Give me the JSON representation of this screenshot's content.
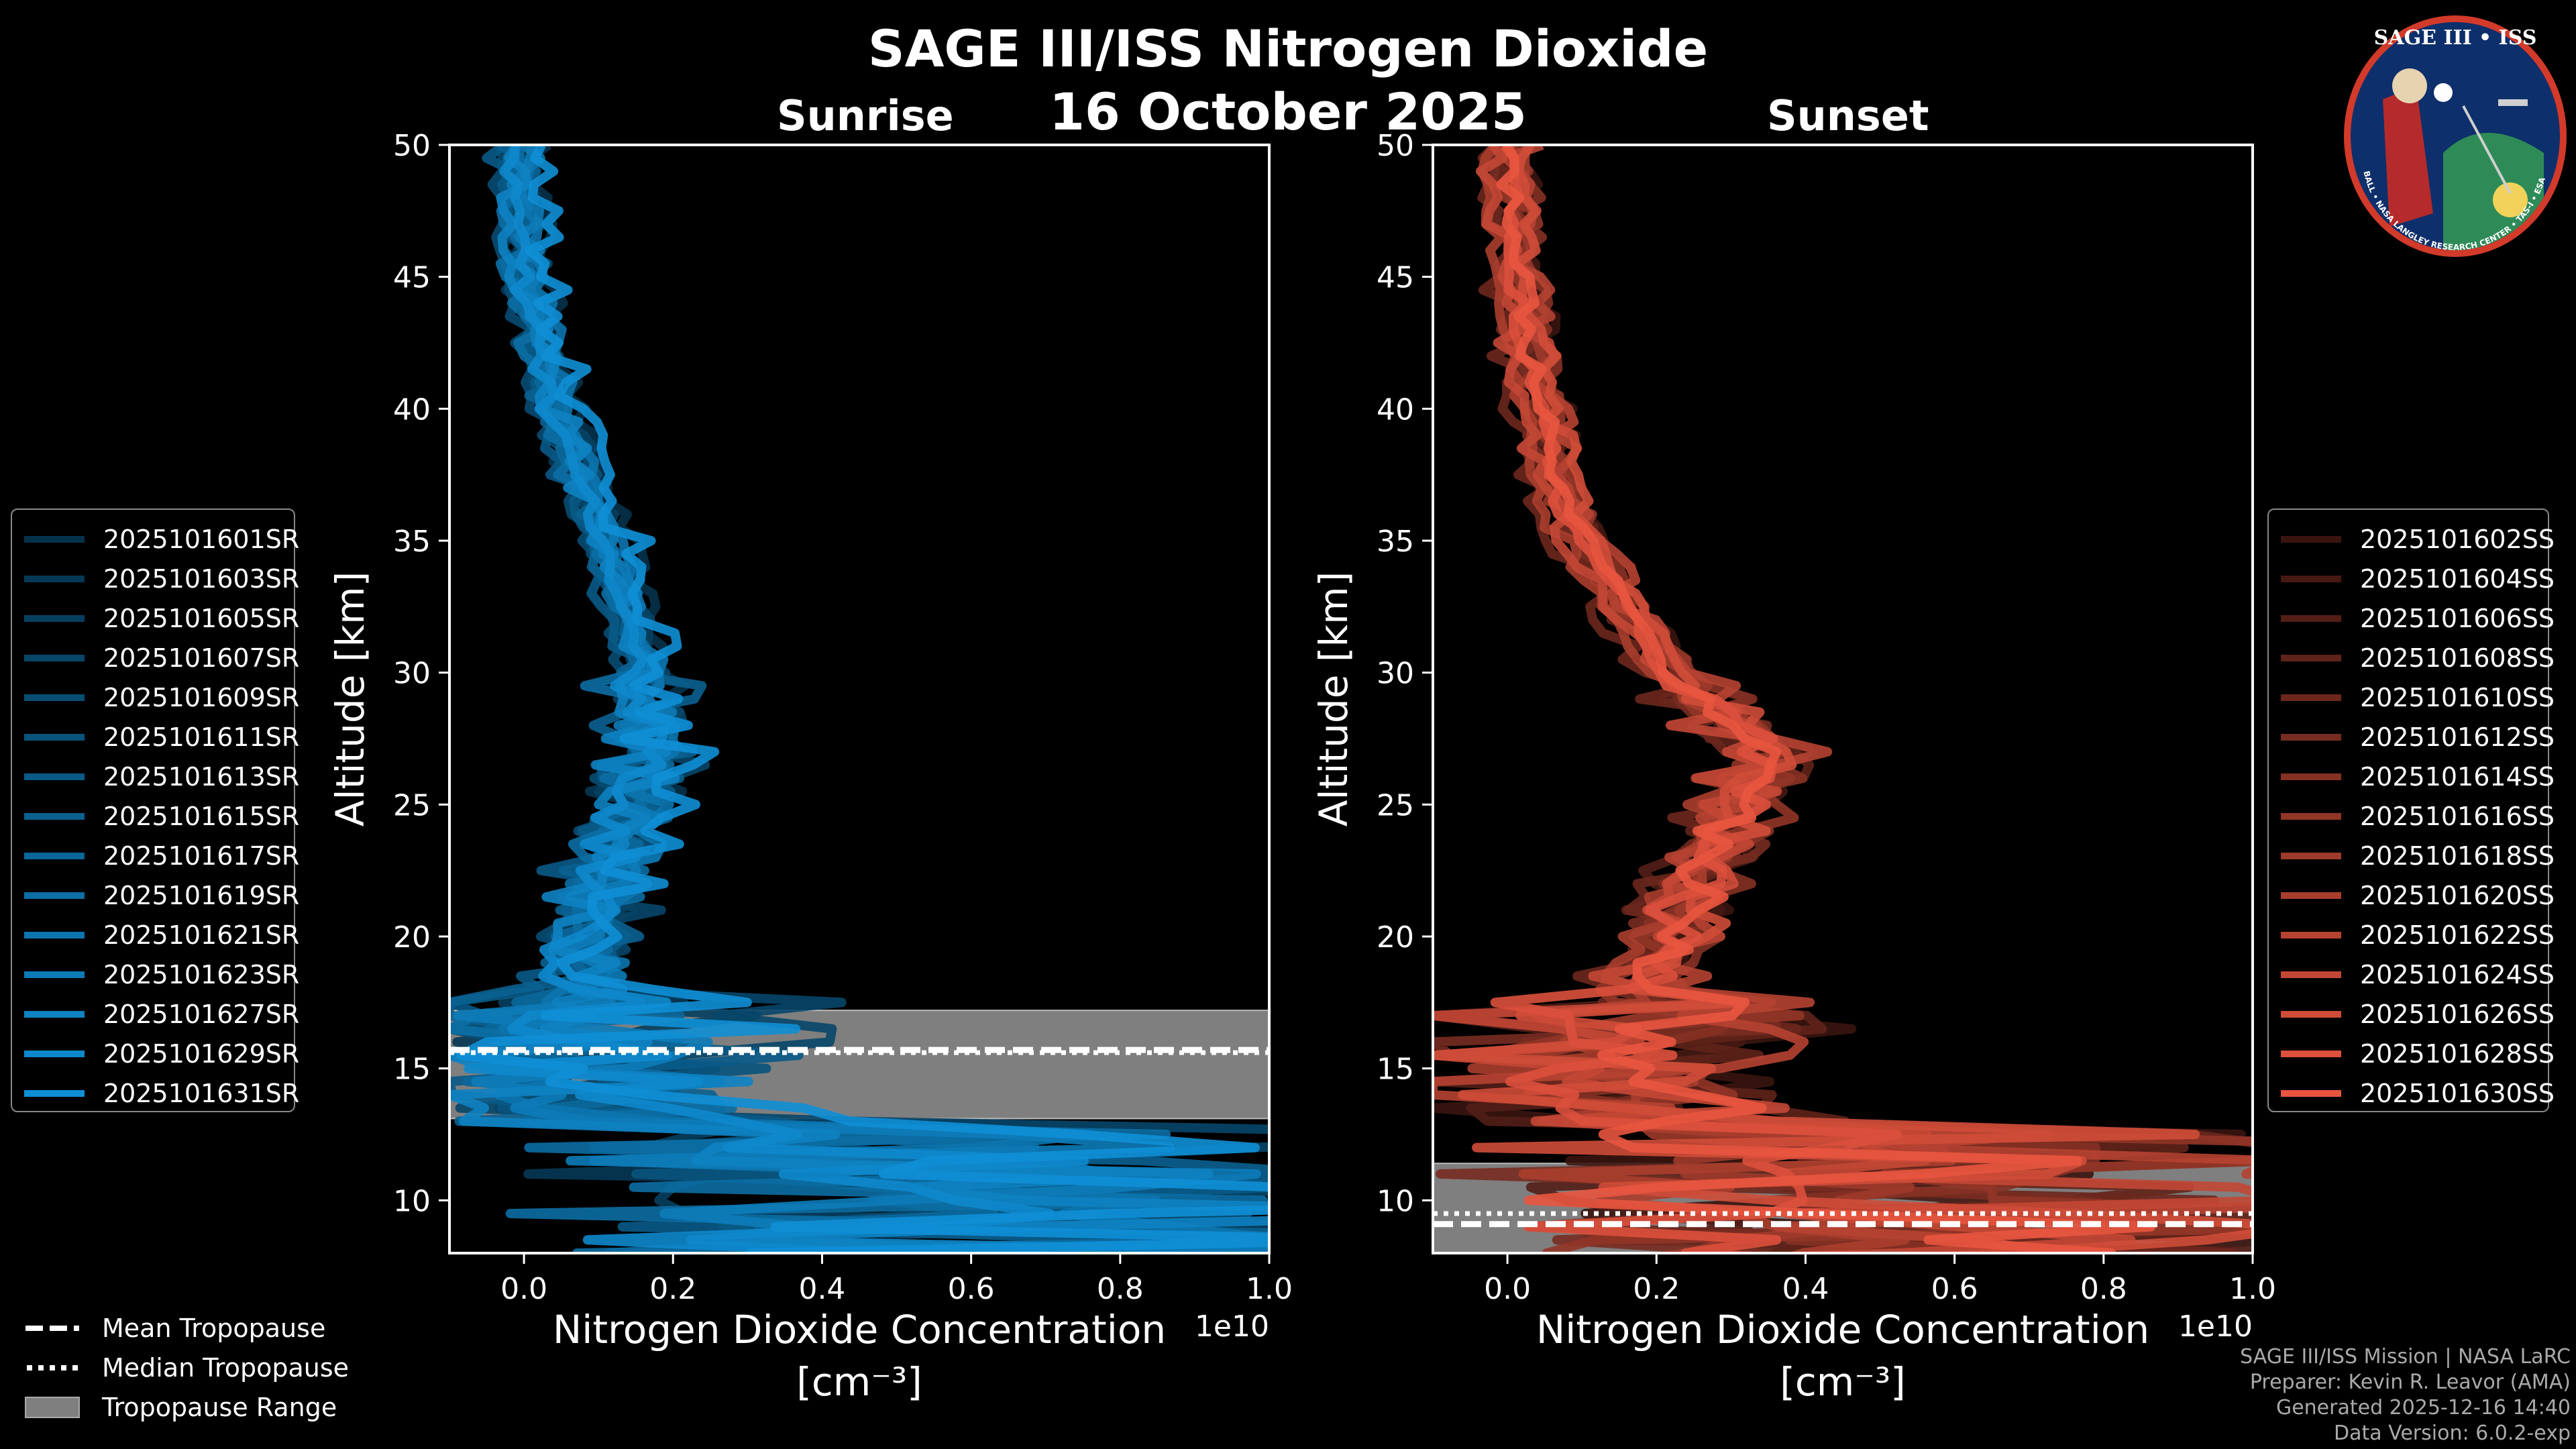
{
  "title": "SAGE III/ISS Nitrogen Dioxide",
  "date": "16 October 2025",
  "colors": {
    "sunrise": "#0f8fd6",
    "sunset": "#e8553f",
    "tropo_range": "#7f7f7f",
    "background": "#000000"
  },
  "chart_data": [
    {
      "type": "line",
      "title": "Sunrise",
      "xlabel": "Nitrogen Dioxide Concentration",
      "xunit": "[cm⁻³]",
      "xscale_label": "1e10",
      "ylabel": "Altitude [km]",
      "xlim": [
        -0.1,
        1.0
      ],
      "ylim": [
        8,
        50
      ],
      "x_ticks": [
        "0.0",
        "0.2",
        "0.4",
        "0.6",
        "0.8",
        "1.0"
      ],
      "y_ticks": [
        "10",
        "15",
        "20",
        "25",
        "30",
        "35",
        "40",
        "45",
        "50"
      ],
      "legend_position": "left",
      "mean_profile": {
        "altitude_km": [
          50,
          45,
          40,
          35,
          30,
          27,
          25,
          22,
          20,
          18,
          16,
          14,
          12,
          10,
          9
        ],
        "no2_1e10": [
          0.0,
          0.01,
          0.05,
          0.12,
          0.17,
          0.18,
          0.15,
          0.12,
          0.09,
          0.07,
          0.08,
          0.11,
          0.2,
          0.3,
          0.3
        ]
      },
      "tropopause": {
        "mean_km": 15.7,
        "median_km": 15.6,
        "range_km": [
          13.1,
          17.2
        ]
      },
      "series": [
        {
          "name": "2025101601SR"
        },
        {
          "name": "2025101603SR"
        },
        {
          "name": "2025101605SR"
        },
        {
          "name": "2025101607SR"
        },
        {
          "name": "2025101609SR"
        },
        {
          "name": "2025101611SR"
        },
        {
          "name": "2025101613SR"
        },
        {
          "name": "2025101615SR"
        },
        {
          "name": "2025101617SR"
        },
        {
          "name": "2025101619SR"
        },
        {
          "name": "2025101621SR"
        },
        {
          "name": "2025101623SR"
        },
        {
          "name": "2025101627SR"
        },
        {
          "name": "2025101629SR"
        },
        {
          "name": "2025101631SR"
        }
      ]
    },
    {
      "type": "line",
      "title": "Sunset",
      "xlabel": "Nitrogen Dioxide Concentration",
      "xunit": "[cm⁻³]",
      "xscale_label": "1e10",
      "ylabel": "Altitude [km]",
      "xlim": [
        -0.1,
        1.0
      ],
      "ylim": [
        8,
        50
      ],
      "x_ticks": [
        "0.0",
        "0.2",
        "0.4",
        "0.6",
        "0.8",
        "1.0"
      ],
      "y_ticks": [
        "10",
        "15",
        "20",
        "25",
        "30",
        "35",
        "40",
        "45",
        "50"
      ],
      "legend_position": "right",
      "mean_profile": {
        "altitude_km": [
          50,
          45,
          40,
          37,
          35,
          32,
          30,
          28,
          27,
          25,
          23,
          21,
          19,
          17,
          15,
          13,
          11,
          9
        ],
        "no2_1e10": [
          0.0,
          0.01,
          0.04,
          0.06,
          0.1,
          0.16,
          0.22,
          0.3,
          0.36,
          0.3,
          0.27,
          0.23,
          0.2,
          0.15,
          0.12,
          0.15,
          0.2,
          0.25
        ]
      },
      "tropopause": {
        "mean_km": 9.1,
        "median_km": 9.5,
        "range_km": [
          8,
          11.4
        ]
      },
      "series": [
        {
          "name": "2025101602SS"
        },
        {
          "name": "2025101604SS"
        },
        {
          "name": "2025101606SS"
        },
        {
          "name": "2025101608SS"
        },
        {
          "name": "2025101610SS"
        },
        {
          "name": "2025101612SS"
        },
        {
          "name": "2025101614SS"
        },
        {
          "name": "2025101616SS"
        },
        {
          "name": "2025101618SS"
        },
        {
          "name": "2025101620SS"
        },
        {
          "name": "2025101622SS"
        },
        {
          "name": "2025101624SS"
        },
        {
          "name": "2025101626SS"
        },
        {
          "name": "2025101628SS"
        },
        {
          "name": "2025101630SS"
        }
      ]
    }
  ],
  "tropopause_legend": [
    "Mean Tropopause",
    "Median Tropopause",
    "Tropopause Range"
  ],
  "credits": [
    "SAGE III/ISS Mission | NASA LaRC",
    "Preparer: Kevin R. Leavor (AMA)",
    "Generated 2025-12-16 14:40",
    "Data Version: 6.0.2-exp"
  ],
  "logo": {
    "top_text": "SAGE III • ISS",
    "ring_text": "BALL • NASA LANGLEY RESEARCH CENTER • TAS-I • ESA"
  }
}
